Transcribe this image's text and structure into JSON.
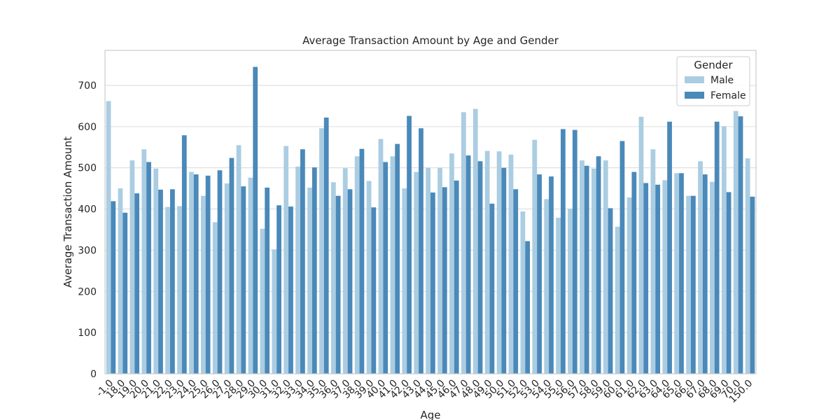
{
  "chart_data": {
    "type": "bar",
    "title": "Average Transaction Amount by Age and Gender",
    "xlabel": "Age",
    "ylabel": "Average Transaction Amount",
    "ylim": [
      0,
      785
    ],
    "yticks": [
      0,
      100,
      200,
      300,
      400,
      500,
      600,
      700
    ],
    "grid": true,
    "legend": {
      "title": "Gender",
      "placement": "top-right"
    },
    "categories": [
      "-1.0",
      "18.0",
      "19.0",
      "20.0",
      "21.0",
      "22.0",
      "23.0",
      "24.0",
      "25.0",
      "26.0",
      "27.0",
      "28.0",
      "29.0",
      "30.0",
      "31.0",
      "32.0",
      "33.0",
      "34.0",
      "35.0",
      "36.0",
      "37.0",
      "38.0",
      "39.0",
      "40.0",
      "41.0",
      "42.0",
      "43.0",
      "44.0",
      "45.0",
      "46.0",
      "47.0",
      "48.0",
      "49.0",
      "50.0",
      "51.0",
      "52.0",
      "53.0",
      "54.0",
      "55.0",
      "56.0",
      "57.0",
      "58.0",
      "59.0",
      "60.0",
      "61.0",
      "62.0",
      "63.0",
      "64.0",
      "65.0",
      "66.0",
      "67.0",
      "68.0",
      "69.0",
      "70.0",
      "150.0"
    ],
    "series": [
      {
        "name": "Male",
        "color": "#abcde2",
        "values": [
          662,
          450,
          518,
          545,
          498,
          405,
          407,
          490,
          432,
          368,
          462,
          555,
          476,
          352,
          302,
          553,
          503,
          452,
          596,
          465,
          499,
          528,
          468,
          570,
          528,
          450,
          490,
          500,
          500,
          535,
          635,
          643,
          541,
          540,
          532,
          394,
          568,
          424,
          379,
          401,
          518,
          498,
          518,
          357,
          428,
          624,
          545,
          470,
          487,
          432,
          516,
          466,
          601,
          638,
          523
        ]
      },
      {
        "name": "Female",
        "color": "#4a89b9",
        "values": [
          419,
          391,
          438,
          514,
          447,
          448,
          579,
          484,
          481,
          494,
          524,
          455,
          745,
          452,
          409,
          406,
          545,
          501,
          622,
          432,
          448,
          546,
          404,
          514,
          558,
          626,
          596,
          440,
          453,
          469,
          530,
          516,
          413,
          500,
          448,
          322,
          484,
          479,
          594,
          592,
          505,
          528,
          402,
          565,
          490,
          463,
          459,
          612,
          487,
          432,
          484,
          612,
          441,
          625,
          430
        ]
      }
    ]
  }
}
